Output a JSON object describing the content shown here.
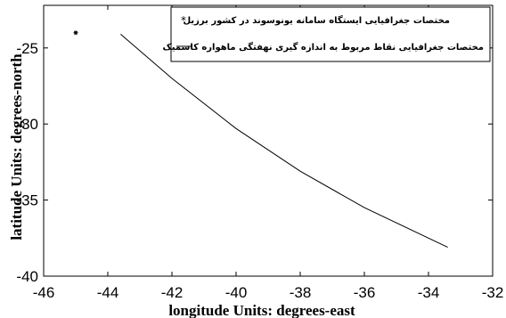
{
  "chart_data": {
    "type": "scatter",
    "xlabel": "longitude  Units: degrees-east",
    "ylabel": "latitude   Units: degrees-north",
    "xlim": [
      -46,
      -32
    ],
    "ylim": [
      -40,
      -22.2
    ],
    "x_ticks": [
      "-46",
      "-44",
      "-42",
      "-40",
      "-38",
      "-36",
      "-34",
      "-32"
    ],
    "y_ticks": [
      "-25",
      "-30",
      "-35",
      "-40"
    ],
    "grid": false,
    "legend_position": "top-right",
    "series": [
      {
        "name": "مختصات جغرافیایی ایستگاه سامانه یونوسوند در کشور برزیل",
        "type": "scatter",
        "marker": "star",
        "x": [
          -45.0
        ],
        "y": [
          -24.0
        ]
      },
      {
        "name": "مختصات جغرافیایی نقاط مربوط به اندازه گیری نهفتگی ماهواره کاسمیک",
        "type": "line",
        "x": [
          -43.6,
          -42.0,
          -40.0,
          -38.0,
          -36.0,
          -34.0,
          -33.4
        ],
        "y": [
          -24.1,
          -27.0,
          -30.3,
          -33.1,
          -35.5,
          -37.5,
          -38.1
        ]
      }
    ]
  }
}
